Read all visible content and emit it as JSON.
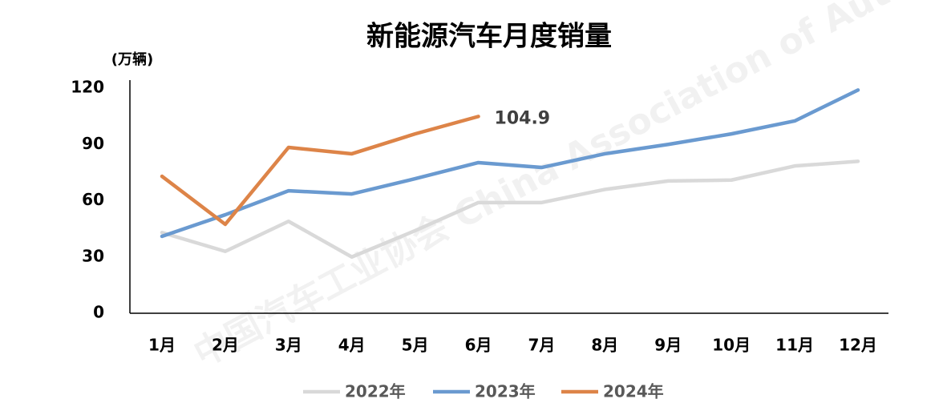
{
  "chart_data": {
    "type": "line",
    "title": "新能源汽车月度销量",
    "y_label": "(万辆)",
    "watermark": "中国汽车工业协会 China Association of Automobile Manufacturers",
    "categories": [
      "1月",
      "2月",
      "3月",
      "4月",
      "5月",
      "6月",
      "7月",
      "8月",
      "9月",
      "10月",
      "11月",
      "12月"
    ],
    "series": [
      {
        "name": "2022年",
        "color": "#d9d9d9",
        "values": [
          43,
          33,
          49,
          30,
          44,
          59,
          59,
          66,
          70.5,
          71,
          78.5,
          81
        ]
      },
      {
        "name": "2023年",
        "color": "#6a9ad0",
        "values": [
          41,
          52.5,
          65.3,
          63.6,
          71.7,
          80.3,
          77.7,
          85,
          90,
          95.6,
          102.5,
          119
        ]
      },
      {
        "name": "2024年",
        "color": "#dd8448",
        "values": [
          73,
          47.4,
          88.4,
          85,
          95.6,
          104.9,
          null,
          null,
          null,
          null,
          null,
          null
        ]
      }
    ],
    "data_labels": [
      {
        "series": 2,
        "index": 5
      }
    ],
    "ylim": [
      0,
      120
    ],
    "yticks": [
      0,
      30,
      60,
      90,
      120
    ],
    "grid": false,
    "legend": "bottom"
  }
}
